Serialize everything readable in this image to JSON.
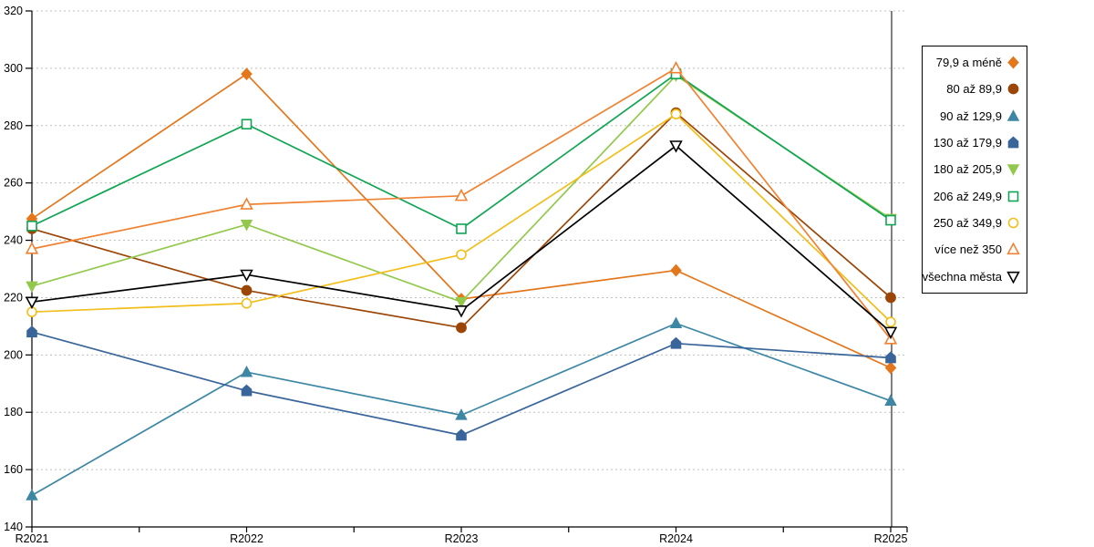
{
  "chart_data": {
    "type": "line",
    "title": "",
    "xlabel": "",
    "ylabel": "",
    "categories": [
      "R2021",
      "R2022",
      "R2023",
      "R2024",
      "R2025"
    ],
    "ylim": [
      140,
      320
    ],
    "yticks": [
      140,
      160,
      180,
      200,
      220,
      240,
      260,
      280,
      300,
      320
    ],
    "grid": "horizontal-dashed",
    "grid_color": "#bfbfbf",
    "axis_color": "#000000",
    "legend_position": "right",
    "series": [
      {
        "name": "79,9 a méně",
        "marker": "diamond",
        "marker_style": "filled",
        "color": "#e4761b",
        "values": [
          247.5,
          298,
          219.5,
          229.5,
          195.5
        ]
      },
      {
        "name": "80 až 89,9",
        "marker": "circle",
        "marker_style": "filled",
        "color": "#9b4607",
        "values": [
          244,
          222.5,
          209.5,
          284.5,
          220
        ]
      },
      {
        "name": "90 až 129,9",
        "marker": "triangle-up",
        "marker_style": "filled",
        "color": "#3d87a4",
        "values": [
          151,
          194,
          179,
          211,
          184
        ]
      },
      {
        "name": "130 až 179,9",
        "marker": "pentagon",
        "marker_style": "filled",
        "color": "#39659b",
        "values": [
          208,
          187.5,
          172,
          204,
          199
        ]
      },
      {
        "name": "180 až 205,9",
        "marker": "triangle-down",
        "marker_style": "filled",
        "color": "#92c94c",
        "values": [
          224,
          245.5,
          218.5,
          297.5,
          247.5
        ]
      },
      {
        "name": "206 až 249,9",
        "marker": "square",
        "marker_style": "open",
        "color": "#0fa553",
        "values": [
          245,
          280.5,
          244,
          298,
          247
        ]
      },
      {
        "name": "250 až 349,9",
        "marker": "circle",
        "marker_style": "open",
        "color": "#f2be1a",
        "values": [
          215,
          218,
          235,
          284,
          211.5
        ]
      },
      {
        "name": "více než 350",
        "marker": "triangle-up",
        "marker_style": "open",
        "color": "#f08232",
        "values": [
          237,
          252.5,
          255.5,
          300,
          205.5
        ]
      },
      {
        "name": "všechna města",
        "marker": "triangle-down",
        "marker_style": "open",
        "color": "#000000",
        "values": [
          218.5,
          228,
          215.5,
          273,
          208
        ]
      }
    ]
  }
}
